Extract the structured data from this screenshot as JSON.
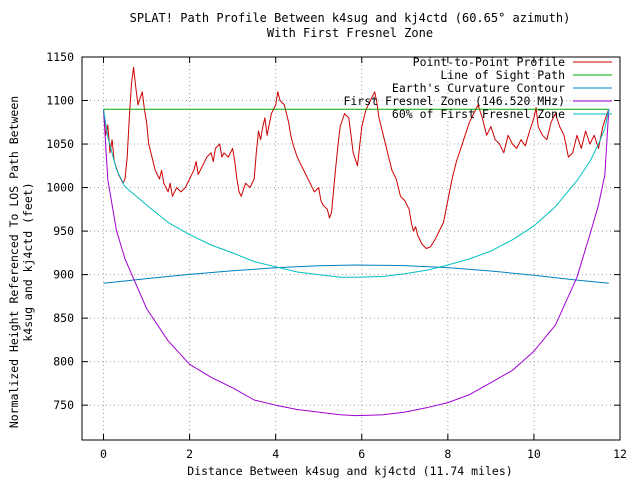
{
  "chart_data": {
    "type": "line",
    "title": "SPLAT! Path Profile Between k4sug and kj4ctd (60.65° azimuth)",
    "subtitle": "With First Fresnel Zone",
    "xlabel": "Distance Between k4sug and kj4ctd (11.74 miles)",
    "ylabel_line1": "Normalized Height Referenced To LOS Path Between",
    "ylabel_line2": "k4sug and kj4ctd (feet)",
    "xlim": [
      -0.5,
      12
    ],
    "ylim": [
      710,
      1150
    ],
    "x_ticks": [
      0,
      2,
      4,
      6,
      8,
      10,
      12
    ],
    "x_tick_labels": [
      "0",
      "2",
      "4",
      "6",
      "8",
      "10",
      "12"
    ],
    "y_ticks": [
      750,
      800,
      850,
      900,
      950,
      1000,
      1050,
      1100,
      1150
    ],
    "y_tick_labels": [
      "750",
      "800",
      "850",
      "900",
      "950",
      "1000",
      "1050",
      "1100",
      "1150"
    ],
    "grid": true,
    "legend_position": "top-right",
    "series": [
      {
        "name": "Point-to-Point Profile",
        "color": "#cc0000",
        "points": [
          [
            0,
            1090
          ],
          [
            0.05,
            1060
          ],
          [
            0.1,
            1072
          ],
          [
            0.15,
            1040
          ],
          [
            0.2,
            1055
          ],
          [
            0.25,
            1030
          ],
          [
            0.35,
            1015
          ],
          [
            0.45,
            1005
          ],
          [
            0.5,
            1010
          ],
          [
            0.55,
            1035
          ],
          [
            0.6,
            1080
          ],
          [
            0.65,
            1120
          ],
          [
            0.7,
            1138
          ],
          [
            0.75,
            1115
          ],
          [
            0.8,
            1095
          ],
          [
            0.9,
            1110
          ],
          [
            0.95,
            1090
          ],
          [
            1.0,
            1075
          ],
          [
            1.05,
            1050
          ],
          [
            1.1,
            1040
          ],
          [
            1.2,
            1020
          ],
          [
            1.3,
            1010
          ],
          [
            1.35,
            1020
          ],
          [
            1.4,
            1005
          ],
          [
            1.5,
            995
          ],
          [
            1.55,
            1005
          ],
          [
            1.6,
            990
          ],
          [
            1.7,
            1000
          ],
          [
            1.8,
            995
          ],
          [
            1.9,
            1000
          ],
          [
            2.0,
            1010
          ],
          [
            2.1,
            1020
          ],
          [
            2.15,
            1030
          ],
          [
            2.2,
            1015
          ],
          [
            2.3,
            1025
          ],
          [
            2.4,
            1035
          ],
          [
            2.5,
            1040
          ],
          [
            2.55,
            1030
          ],
          [
            2.6,
            1045
          ],
          [
            2.7,
            1050
          ],
          [
            2.75,
            1035
          ],
          [
            2.8,
            1040
          ],
          [
            2.9,
            1035
          ],
          [
            3.0,
            1045
          ],
          [
            3.05,
            1030
          ],
          [
            3.1,
            1010
          ],
          [
            3.15,
            995
          ],
          [
            3.2,
            990
          ],
          [
            3.3,
            1005
          ],
          [
            3.4,
            1000
          ],
          [
            3.5,
            1010
          ],
          [
            3.55,
            1040
          ],
          [
            3.6,
            1065
          ],
          [
            3.65,
            1055
          ],
          [
            3.7,
            1070
          ],
          [
            3.75,
            1080
          ],
          [
            3.8,
            1060
          ],
          [
            3.9,
            1085
          ],
          [
            4.0,
            1095
          ],
          [
            4.05,
            1110
          ],
          [
            4.1,
            1100
          ],
          [
            4.2,
            1095
          ],
          [
            4.3,
            1075
          ],
          [
            4.35,
            1060
          ],
          [
            4.4,
            1050
          ],
          [
            4.5,
            1035
          ],
          [
            4.6,
            1025
          ],
          [
            4.7,
            1015
          ],
          [
            4.8,
            1005
          ],
          [
            4.9,
            995
          ],
          [
            5.0,
            1000
          ],
          [
            5.05,
            985
          ],
          [
            5.1,
            980
          ],
          [
            5.2,
            975
          ],
          [
            5.25,
            965
          ],
          [
            5.3,
            972
          ],
          [
            5.35,
            1000
          ],
          [
            5.4,
            1025
          ],
          [
            5.45,
            1050
          ],
          [
            5.5,
            1070
          ],
          [
            5.6,
            1085
          ],
          [
            5.7,
            1080
          ],
          [
            5.75,
            1060
          ],
          [
            5.8,
            1040
          ],
          [
            5.9,
            1025
          ],
          [
            6.0,
            1070
          ],
          [
            6.1,
            1090
          ],
          [
            6.2,
            1100
          ],
          [
            6.3,
            1110
          ],
          [
            6.35,
            1098
          ],
          [
            6.4,
            1080
          ],
          [
            6.5,
            1060
          ],
          [
            6.6,
            1040
          ],
          [
            6.7,
            1020
          ],
          [
            6.8,
            1010
          ],
          [
            6.9,
            990
          ],
          [
            7.0,
            985
          ],
          [
            7.1,
            975
          ],
          [
            7.15,
            960
          ],
          [
            7.2,
            950
          ],
          [
            7.25,
            955
          ],
          [
            7.3,
            945
          ],
          [
            7.4,
            935
          ],
          [
            7.5,
            930
          ],
          [
            7.6,
            932
          ],
          [
            7.7,
            940
          ],
          [
            7.8,
            950
          ],
          [
            7.9,
            960
          ],
          [
            8.0,
            985
          ],
          [
            8.1,
            1010
          ],
          [
            8.2,
            1030
          ],
          [
            8.3,
            1045
          ],
          [
            8.4,
            1060
          ],
          [
            8.5,
            1075
          ],
          [
            8.6,
            1085
          ],
          [
            8.7,
            1095
          ],
          [
            8.8,
            1080
          ],
          [
            8.9,
            1060
          ],
          [
            9.0,
            1070
          ],
          [
            9.1,
            1055
          ],
          [
            9.2,
            1050
          ],
          [
            9.3,
            1040
          ],
          [
            9.4,
            1060
          ],
          [
            9.5,
            1050
          ],
          [
            9.6,
            1045
          ],
          [
            9.7,
            1055
          ],
          [
            9.8,
            1048
          ],
          [
            9.9,
            1065
          ],
          [
            10.0,
            1080
          ],
          [
            10.05,
            1092
          ],
          [
            10.1,
            1070
          ],
          [
            10.2,
            1060
          ],
          [
            10.3,
            1055
          ],
          [
            10.4,
            1075
          ],
          [
            10.5,
            1085
          ],
          [
            10.6,
            1070
          ],
          [
            10.7,
            1060
          ],
          [
            10.8,
            1035
          ],
          [
            10.9,
            1040
          ],
          [
            11.0,
            1060
          ],
          [
            11.1,
            1045
          ],
          [
            11.2,
            1065
          ],
          [
            11.3,
            1050
          ],
          [
            11.4,
            1060
          ],
          [
            11.5,
            1045
          ],
          [
            11.6,
            1070
          ],
          [
            11.7,
            1085
          ],
          [
            11.74,
            1090
          ]
        ]
      },
      {
        "name": "Line of Sight Path",
        "color": "#00aa00",
        "points": [
          [
            0,
            1090
          ],
          [
            11.74,
            1090
          ]
        ]
      },
      {
        "name": "Earth's Curvature Contour",
        "color": "#0080c0",
        "points": [
          [
            0,
            890
          ],
          [
            1,
            895.4
          ],
          [
            2,
            900.3
          ],
          [
            3,
            904.4
          ],
          [
            4,
            907.8
          ],
          [
            5,
            910.1
          ],
          [
            5.87,
            911
          ],
          [
            7,
            910.3
          ],
          [
            8,
            908
          ],
          [
            9,
            904.2
          ],
          [
            10,
            899.2
          ],
          [
            11,
            893.7
          ],
          [
            11.74,
            890
          ]
        ]
      },
      {
        "name": "First Fresnel Zone (146.520 MHz)",
        "color": "#a000d0",
        "points": [
          [
            0,
            1090
          ],
          [
            0.1,
            1009
          ],
          [
            0.3,
            951
          ],
          [
            0.5,
            918
          ],
          [
            1,
            861
          ],
          [
            1.5,
            824
          ],
          [
            2,
            797
          ],
          [
            2.5,
            782
          ],
          [
            3,
            770
          ],
          [
            3.5,
            756
          ],
          [
            4,
            750
          ],
          [
            4.5,
            745
          ],
          [
            5,
            742
          ],
          [
            5.5,
            739
          ],
          [
            5.87,
            738
          ],
          [
            6.5,
            739
          ],
          [
            7,
            742
          ],
          [
            7.5,
            747
          ],
          [
            8,
            753
          ],
          [
            8.5,
            762
          ],
          [
            9,
            776
          ],
          [
            9.5,
            790
          ],
          [
            10,
            812
          ],
          [
            10.5,
            842
          ],
          [
            11,
            897
          ],
          [
            11.3,
            946
          ],
          [
            11.5,
            980
          ],
          [
            11.65,
            1015
          ],
          [
            11.74,
            1090
          ]
        ]
      },
      {
        "name": "60% of First Fresnel Zone",
        "color": "#00c0c0",
        "points": [
          [
            0,
            1090
          ],
          [
            0.1,
            1058
          ],
          [
            0.3,
            1021
          ],
          [
            0.5,
            1001
          ],
          [
            1,
            980
          ],
          [
            1.5,
            960
          ],
          [
            2,
            946
          ],
          [
            2.5,
            934
          ],
          [
            3,
            925
          ],
          [
            3.5,
            915
          ],
          [
            4,
            909
          ],
          [
            4.5,
            903
          ],
          [
            5,
            900
          ],
          [
            5.5,
            897
          ],
          [
            5.87,
            897
          ],
          [
            6.5,
            898
          ],
          [
            7,
            901
          ],
          [
            7.5,
            905
          ],
          [
            8,
            911
          ],
          [
            8.5,
            918
          ],
          [
            9,
            927
          ],
          [
            9.5,
            940
          ],
          [
            10,
            956
          ],
          [
            10.5,
            978
          ],
          [
            11,
            1008
          ],
          [
            11.3,
            1030
          ],
          [
            11.5,
            1050
          ],
          [
            11.65,
            1068
          ],
          [
            11.74,
            1090
          ]
        ]
      }
    ]
  }
}
